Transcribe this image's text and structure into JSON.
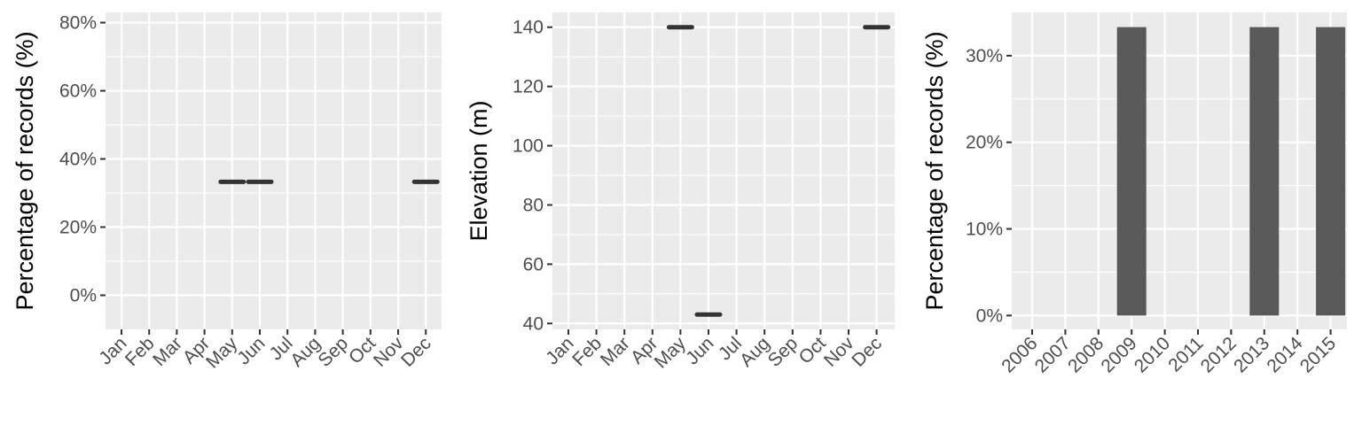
{
  "chart_data": [
    {
      "type": "scatter",
      "ylabel": "Percentage of records (%)",
      "xlabel": "",
      "categories": [
        "Jan",
        "Feb",
        "Mar",
        "Apr",
        "May",
        "Jun",
        "Jul",
        "Aug",
        "Sep",
        "Oct",
        "Nov",
        "Dec"
      ],
      "points": [
        {
          "x": "May",
          "y": 33.3
        },
        {
          "x": "Jun",
          "y": 33.3
        },
        {
          "x": "Dec",
          "y": 33.3
        }
      ],
      "y_ticks": [
        0,
        20,
        40,
        60,
        80
      ],
      "y_tick_labels": [
        "0%",
        "20%",
        "40%",
        "60%",
        "80%"
      ],
      "ylim": [
        -10,
        83
      ],
      "grid": true
    },
    {
      "type": "scatter",
      "ylabel": "Elevation (m)",
      "xlabel": "",
      "categories": [
        "Jan",
        "Feb",
        "Mar",
        "Apr",
        "May",
        "Jun",
        "Jul",
        "Aug",
        "Sep",
        "Oct",
        "Nov",
        "Dec"
      ],
      "points": [
        {
          "x": "May",
          "y": 140
        },
        {
          "x": "Jun",
          "y": 43
        },
        {
          "x": "Dec",
          "y": 140
        }
      ],
      "y_ticks": [
        40,
        60,
        80,
        100,
        120,
        140
      ],
      "y_tick_labels": [
        "40",
        "60",
        "80",
        "100",
        "120",
        "140"
      ],
      "ylim": [
        38,
        145
      ],
      "grid": true
    },
    {
      "type": "bar",
      "ylabel": "Percentage of records (%)",
      "xlabel": "",
      "categories": [
        "2006",
        "2007",
        "2008",
        "2009",
        "2010",
        "2011",
        "2012",
        "2013",
        "2014",
        "2015"
      ],
      "values": [
        0,
        0,
        0,
        33.3,
        0,
        0,
        0,
        33.3,
        0,
        33.3
      ],
      "y_ticks": [
        0,
        10,
        20,
        30
      ],
      "y_tick_labels": [
        "0%",
        "10%",
        "20%",
        "30%"
      ],
      "ylim": [
        -1.6,
        35
      ],
      "grid": true
    }
  ]
}
